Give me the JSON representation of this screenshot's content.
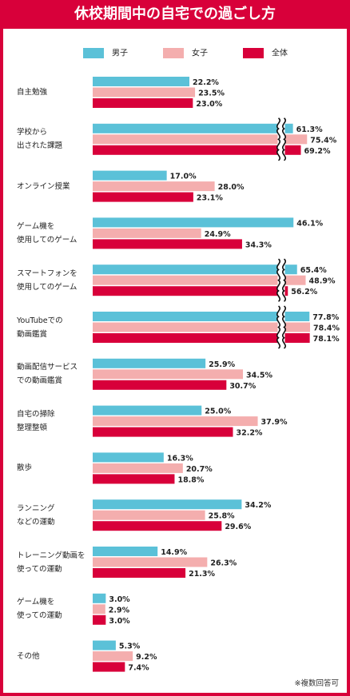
{
  "title": "休校期間中の自宅での過ごし方",
  "footnote": "※複数回答可",
  "colors": {
    "boys": "#5bc1d8",
    "girls": "#f4aeae",
    "all": "#d8003a",
    "accent": "#d8003a"
  },
  "legend": [
    {
      "label": "男子",
      "color": "#5bc1d8"
    },
    {
      "label": "女子",
      "color": "#f4aeae"
    },
    {
      "label": "全体",
      "color": "#d8003a"
    }
  ],
  "chart_data": {
    "type": "bar",
    "orientation": "horizontal",
    "unit": "%",
    "categories": [
      [
        "自主勉強"
      ],
      [
        "学校から",
        "出された課題"
      ],
      [
        "オンライン授業"
      ],
      [
        "ゲーム機を",
        "使用してのゲーム"
      ],
      [
        "スマートフォンを",
        "使用してのゲーム"
      ],
      [
        "YouTubeでの",
        "動画鑑賞"
      ],
      [
        "動画配信サービス",
        "での動画鑑賞"
      ],
      [
        "自宅の掃除",
        "整理整頓"
      ],
      [
        "散歩"
      ],
      [
        "ランニング",
        "などの運動"
      ],
      [
        "トレーニング動画を",
        "使っての運動"
      ],
      [
        "ゲーム機を",
        "使っての運動"
      ],
      [
        "その他"
      ]
    ],
    "series": [
      {
        "name": "男子",
        "values": [
          22.2,
          61.3,
          17.0,
          46.1,
          65.4,
          77.8,
          25.9,
          25.0,
          16.3,
          34.2,
          14.9,
          3.0,
          5.3
        ]
      },
      {
        "name": "女子",
        "values": [
          23.5,
          75.4,
          28.0,
          24.9,
          48.9,
          78.4,
          34.5,
          37.9,
          20.7,
          25.8,
          26.3,
          2.9,
          9.2
        ]
      },
      {
        "name": "全体",
        "values": [
          23.0,
          69.2,
          23.1,
          34.3,
          56.2,
          78.1,
          30.7,
          32.2,
          18.8,
          29.6,
          21.3,
          3.0,
          7.4
        ]
      }
    ],
    "axis_break": {
      "from": 50,
      "applies_to_categories": [
        1,
        4,
        5
      ]
    },
    "grid": false,
    "legend_position": "top"
  }
}
